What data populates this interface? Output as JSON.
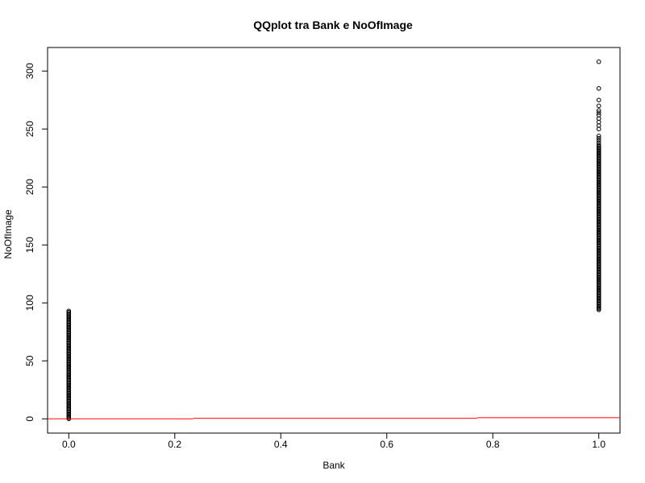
{
  "chart_data": {
    "type": "scatter",
    "title": "QQplot tra Bank e NoOfImage",
    "xlabel": "Bank",
    "ylabel": "NoOfImage",
    "xlim": [
      -0.04,
      1.04
    ],
    "ylim": [
      -12.3,
      320.3
    ],
    "x_ticks": [
      0.0,
      0.2,
      0.4,
      0.6,
      0.8,
      1.0
    ],
    "x_tick_labels": [
      "0.0",
      "0.2",
      "0.4",
      "0.6",
      "0.8",
      "1.0"
    ],
    "y_ticks": [
      0,
      50,
      100,
      150,
      200,
      250,
      300
    ],
    "y_tick_labels": [
      "0",
      "50",
      "100",
      "150",
      "200",
      "250",
      "300"
    ],
    "grid": false,
    "point_style": "open-circle",
    "point_color": "#000000",
    "series": [
      {
        "x_value": 0,
        "y_values": [
          0,
          1,
          2,
          3,
          4,
          5,
          6,
          7,
          8,
          9,
          10,
          11,
          12,
          13,
          14,
          15,
          16,
          17,
          18,
          19,
          20,
          21,
          22,
          23,
          24,
          25,
          26,
          27,
          28,
          29,
          30,
          31,
          32,
          33,
          34,
          35,
          36,
          37,
          38,
          39,
          40,
          41,
          42,
          43,
          44,
          45,
          46,
          47,
          48,
          49,
          50,
          51,
          52,
          53,
          54,
          55,
          56,
          57,
          58,
          59,
          60,
          61,
          62,
          63,
          64,
          65,
          66,
          67,
          68,
          69,
          70,
          71,
          72,
          73,
          74,
          75,
          76,
          77,
          78,
          79,
          80,
          81,
          82,
          83,
          84,
          85,
          86,
          87,
          88,
          89,
          90,
          91,
          92,
          93
        ]
      },
      {
        "x_value": 1,
        "y_values": [
          94,
          95,
          96,
          97,
          98,
          99,
          100,
          101,
          102,
          103,
          104,
          105,
          106,
          107,
          108,
          109,
          110,
          111,
          112,
          113,
          114,
          115,
          116,
          117,
          118,
          119,
          120,
          121,
          122,
          123,
          124,
          125,
          126,
          127,
          128,
          129,
          130,
          131,
          132,
          133,
          134,
          135,
          136,
          137,
          138,
          139,
          140,
          141,
          142,
          143,
          144,
          145,
          146,
          147,
          148,
          149,
          150,
          151,
          152,
          153,
          154,
          155,
          156,
          157,
          158,
          159,
          160,
          161,
          162,
          163,
          164,
          165,
          166,
          167,
          168,
          169,
          170,
          171,
          172,
          173,
          174,
          175,
          176,
          177,
          178,
          179,
          180,
          181,
          182,
          183,
          184,
          185,
          186,
          187,
          188,
          189,
          190,
          191,
          192,
          193,
          194,
          195,
          196,
          197,
          198,
          199,
          200,
          201,
          202,
          203,
          204,
          205,
          206,
          207,
          208,
          209,
          210,
          211,
          212,
          213,
          214,
          215,
          216,
          217,
          218,
          219,
          220,
          221,
          222,
          223,
          224,
          225,
          226,
          227,
          228,
          229,
          230,
          231,
          232,
          233,
          234,
          235,
          236,
          238,
          240,
          242,
          244,
          250,
          253,
          256,
          259,
          262,
          264,
          266,
          270,
          275,
          285,
          308
        ]
      }
    ],
    "reference_line": {
      "color": "#ff0000",
      "segments": [
        {
          "x": [
            -0.04,
            0.235
          ],
          "y": [
            0,
            0
          ]
        },
        {
          "x": [
            0.235,
            0.77
          ],
          "y": [
            0.5,
            0.5
          ]
        },
        {
          "x": [
            0.77,
            1.04
          ],
          "y": [
            1,
            1
          ]
        }
      ]
    }
  }
}
